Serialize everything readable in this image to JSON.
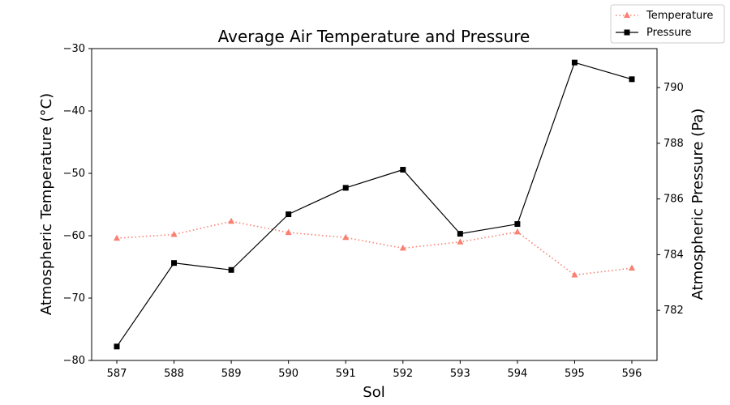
{
  "chart_data": {
    "type": "line",
    "title": "Average Air Temperature and Pressure",
    "xlabel": "Sol",
    "ylabel_left": "Atmospheric Temperature (°C)",
    "ylabel_right": "Atmospheric Pressure (Pa)",
    "x": [
      587,
      588,
      589,
      590,
      591,
      592,
      593,
      594,
      595,
      596
    ],
    "x_ticks": [
      "587",
      "588",
      "589",
      "590",
      "591",
      "592",
      "593",
      "594",
      "595",
      "596"
    ],
    "ylim_left": [
      -80,
      -30
    ],
    "y_ticks_left": [
      -80,
      -70,
      -60,
      -50,
      -40,
      -30
    ],
    "ylim_right": [
      780.2,
      791.4
    ],
    "y_ticks_right": [
      782,
      784,
      786,
      788,
      790
    ],
    "legend_position": "top-right",
    "series": [
      {
        "name": "Temperature",
        "axis": "left",
        "color": "#fa8072",
        "style": "dotted",
        "marker": "triangle",
        "values": [
          -60.4,
          -59.8,
          -57.7,
          -59.5,
          -60.3,
          -62.0,
          -61.0,
          -59.4,
          -66.3,
          -65.2
        ]
      },
      {
        "name": "Pressure",
        "axis": "right",
        "color": "#000000",
        "style": "solid",
        "marker": "square",
        "values": [
          780.7,
          783.7,
          783.45,
          785.45,
          786.4,
          787.05,
          784.75,
          785.1,
          790.9,
          790.3
        ]
      }
    ]
  }
}
